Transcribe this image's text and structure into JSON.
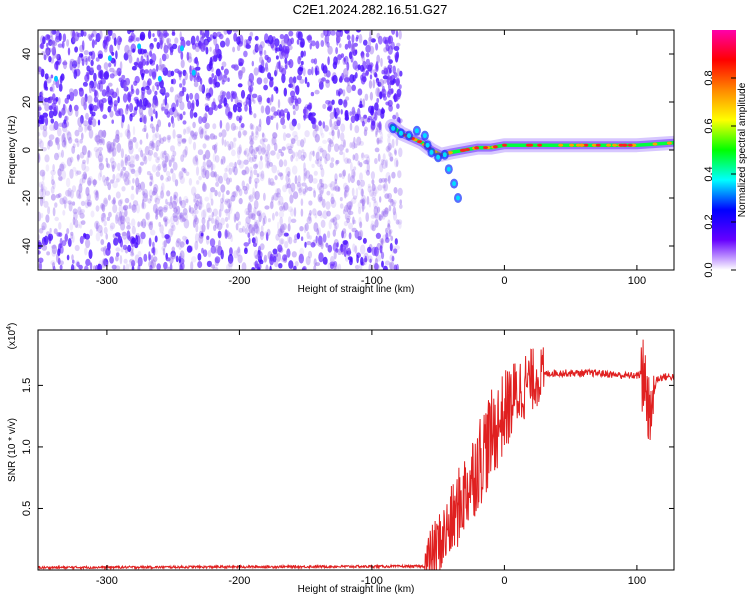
{
  "title": "C2E1.2024.282.16.51.G27",
  "chart_data": [
    {
      "type": "heatmap",
      "xlabel": "Height of straight line (km)",
      "ylabel": "Frequency (Hz)",
      "xlim": [
        -352,
        128
      ],
      "ylim": [
        -50,
        50
      ],
      "xticks": [
        -300,
        -200,
        -100,
        0,
        100
      ],
      "yticks": [
        -40,
        -20,
        0,
        20,
        40
      ],
      "noise_region_x": [
        -352,
        -78
      ],
      "signal_track": {
        "x": [
          -85,
          -78,
          -70,
          -62,
          -55,
          -48,
          -40,
          -30,
          -20,
          -10,
          0,
          20,
          40,
          60,
          80,
          100,
          128
        ],
        "y": [
          10,
          7,
          5,
          3,
          0,
          -2,
          -1,
          0,
          1,
          1,
          2,
          2,
          2,
          2,
          2,
          2,
          3
        ]
      },
      "colorbar": {
        "label": "Normalized spectral amplitude",
        "ticks": [
          "0.0",
          "0.2",
          "0.4",
          "0.6",
          "0.8"
        ],
        "range": [
          0,
          1
        ],
        "colors": [
          "#ffffff",
          "#6600ff",
          "#0000ff",
          "#00ffff",
          "#00ff00",
          "#ffff00",
          "#ff8800",
          "#ff0000",
          "#ff00aa"
        ]
      }
    },
    {
      "type": "line",
      "xlabel": "Height of straight line (km)",
      "ylabel": "SNR (10 * v/v)",
      "yscale_label": "(x10",
      "yscale_exp": "4",
      "xlim": [
        -352,
        128
      ],
      "ylim": [
        0,
        1.95
      ],
      "xticks": [
        -300,
        -200,
        -100,
        0,
        100
      ],
      "yticks": [
        "0.5",
        "1.0",
        "1.5"
      ],
      "color": "#e02020",
      "series": [
        {
          "x": [
            -352,
            -60,
            -55,
            -50,
            -45,
            -40,
            -35,
            -30,
            -25,
            -20,
            -15,
            -10,
            -5,
            0,
            5,
            10,
            15,
            20,
            25,
            30,
            35,
            40,
            50,
            60,
            70,
            80,
            90,
            100,
            105,
            110,
            115,
            120,
            128
          ],
          "y": [
            0.02,
            0.03,
            0.12,
            0.2,
            0.28,
            0.38,
            0.5,
            0.62,
            0.74,
            0.86,
            0.98,
            1.08,
            1.18,
            1.28,
            1.36,
            1.44,
            1.5,
            1.54,
            1.57,
            1.59,
            1.6,
            1.6,
            1.6,
            1.6,
            1.6,
            1.59,
            1.58,
            1.58,
            1.6,
            1.3,
            1.55,
            1.57,
            1.57
          ]
        }
      ]
    }
  ]
}
